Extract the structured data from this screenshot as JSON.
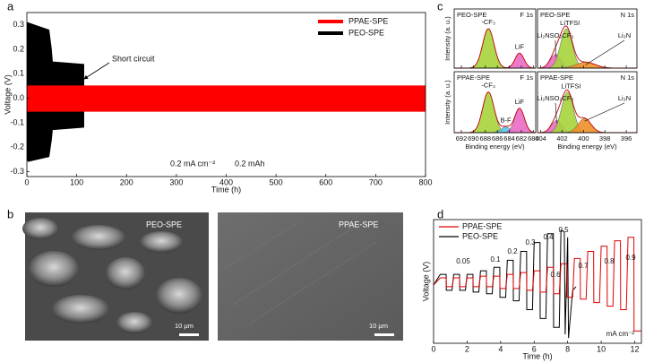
{
  "panel_labels": [
    "a",
    "b",
    "c",
    "d"
  ],
  "images": [
    {
      "label": "PEO-SPE",
      "scale_bar": "10 μm"
    },
    {
      "label": "PPAE-SPE",
      "scale_bar": "10 μm"
    }
  ],
  "chart_data": [
    {
      "type": "band",
      "xlabel": "Time (h)",
      "ylabel": "Voltage (V)",
      "xlim": [
        0,
        800
      ],
      "xticks": [
        0,
        100,
        200,
        300,
        400,
        500,
        600,
        700,
        800
      ],
      "ylim": [
        -0.32,
        0.35
      ],
      "yticks": [
        -0.3,
        -0.2,
        -0.1,
        {
          "value": 0,
          "label": "0.0"
        },
        0.1,
        0.2,
        0.3
      ],
      "legend": "upper right",
      "annotations": [
        "Short circuit",
        "0.2 mA cm⁻²",
        "0.2 mAh"
      ],
      "series": [
        {
          "name": "PPAE-SPE",
          "color": "#ff0000",
          "x": [
            0,
            800
          ],
          "values": [
            0.052,
            0.052
          ],
          "lower": [
            -0.055,
            -0.055
          ]
        },
        {
          "name": "PEO-SPE",
          "color": "#000000",
          "x": [
            0,
            2,
            45,
            50,
            52,
            115
          ],
          "values": [
            0.31,
            0.31,
            0.28,
            0.2,
            0.15,
            0.14
          ],
          "lower": [
            -0.25,
            -0.26,
            -0.24,
            -0.17,
            -0.13,
            -0.12
          ]
        }
      ]
    },
    {
      "type": "xps",
      "title": "PEO-SPE",
      "subtitle": "F 1s",
      "ylabel": "Intensity (a. u.)",
      "xlim": [
        693.2,
        679.6
      ],
      "xticks": [
        692,
        690,
        688,
        686,
        684,
        682,
        680
      ],
      "ylim": [
        0,
        1.5
      ],
      "peaks": [
        {
          "name": "-CF₃",
          "center": 687.5,
          "height": 1.0,
          "width": 0.95,
          "color": "#a6d43c"
        },
        {
          "name": "LiF",
          "center": 682.3,
          "height": 0.38,
          "width": 0.75,
          "color": "#ea6cc4"
        }
      ]
    },
    {
      "type": "xps",
      "title": "PEO-SPE",
      "subtitle": "N 1s",
      "xlim": [
        404.3,
        395
      ],
      "xticks": [
        404,
        402,
        400,
        398,
        396
      ],
      "ylim": [
        0,
        1.5
      ],
      "peaks": [
        {
          "name": "Li₂NSO₂CF₃",
          "center": 402.6,
          "height": 0.35,
          "width": 0.5,
          "color": "#ea6cc4"
        },
        {
          "name": "LiTFSI",
          "center": 401.6,
          "height": 1.0,
          "width": 0.55,
          "color": "#a6d43c"
        },
        {
          "name": "Li₃N",
          "center": 399.8,
          "height": 0.15,
          "width": 0.9,
          "color": "#f0902a"
        }
      ]
    },
    {
      "type": "xps",
      "title": "PPAE-SPE",
      "subtitle": "F 1s",
      "ylabel": "Intensity (a. u.)",
      "xlabel": "Binding energy (eV)",
      "xlim": [
        693.2,
        679.6
      ],
      "xticks": [
        692,
        690,
        688,
        686,
        684,
        682,
        680
      ],
      "ylim": [
        0,
        1.5
      ],
      "peaks": [
        {
          "name": "-CF₃",
          "center": 687.5,
          "height": 1.0,
          "width": 0.95,
          "color": "#a6d43c"
        },
        {
          "name": "B-F",
          "center": 684.6,
          "height": 0.14,
          "width": 0.8,
          "color": "#5cc3e8"
        },
        {
          "name": "LiF",
          "center": 682.3,
          "height": 0.6,
          "width": 0.8,
          "color": "#ea6cc4"
        }
      ]
    },
    {
      "type": "xps",
      "title": "PPAE-SPE",
      "subtitle": "N 1s",
      "xlabel": "Binding energy (eV)",
      "xlim": [
        404.3,
        395
      ],
      "xticks": [
        404,
        402,
        400,
        398,
        396
      ],
      "ylim": [
        0,
        1.5
      ],
      "peaks": [
        {
          "name": "Li₂NSO₂CF₃",
          "center": 402.5,
          "height": 0.3,
          "width": 0.5,
          "color": "#ea6cc4"
        },
        {
          "name": "LiTFSI",
          "center": 401.5,
          "height": 1.0,
          "width": 0.55,
          "color": "#a6d43c"
        },
        {
          "name": "Li₃N",
          "center": 399.9,
          "height": 0.35,
          "width": 0.6,
          "color": "#f0902a"
        }
      ]
    },
    {
      "type": "line",
      "xlabel": "Time (h)",
      "ylabel": "Voltage (V)",
      "xlim": [
        0,
        12.4
      ],
      "xticks": [
        0,
        2,
        4,
        6,
        8,
        10,
        12
      ],
      "ylim": [
        -0.35,
        0.35
      ],
      "legend": "upper left",
      "unit_label": "mA cm⁻²",
      "rate_labels": [
        0.05,
        0.1,
        0.2,
        0.3,
        0.4,
        0.5,
        0.6,
        0.7,
        0.8,
        0.9
      ],
      "series": [
        {
          "name": "PPAE-SPE",
          "color": "#e00000",
          "x": [
            0,
            0.4,
            0.75,
            0.76,
            1.1,
            1.2,
            1.55,
            1.56,
            1.9,
            2.0,
            2.35,
            2.36,
            2.7,
            2.8,
            3.15,
            3.16,
            3.5,
            3.6,
            3.95,
            3.96,
            4.3,
            4.4,
            4.75,
            4.76,
            5.1,
            5.2,
            5.55,
            5.56,
            5.9,
            6.0,
            6.35,
            6.36,
            6.7,
            6.8,
            7.15,
            7.16,
            7.5,
            7.6,
            7.95,
            7.96,
            8.3,
            8.4,
            8.75,
            8.76,
            9.1,
            9.2,
            9.55,
            9.56,
            9.9,
            10.0,
            10.35,
            10.36,
            10.7,
            10.8,
            11.15,
            11.16,
            11.5,
            11.6,
            11.95,
            11.96,
            12.4
          ],
          "values": [
            -0.02,
            0.02,
            0.02,
            -0.03,
            -0.03,
            0.02,
            0.02,
            -0.03,
            -0.03,
            0.02,
            0.02,
            -0.03,
            -0.03,
            0.03,
            0.03,
            -0.03,
            -0.03,
            0.03,
            0.03,
            -0.04,
            -0.04,
            0.04,
            0.04,
            -0.04,
            -0.04,
            0.05,
            0.05,
            -0.05,
            -0.05,
            0.06,
            0.06,
            -0.06,
            -0.06,
            0.08,
            0.08,
            -0.07,
            -0.07,
            0.1,
            0.1,
            -0.09,
            -0.09,
            0.13,
            0.13,
            -0.1,
            -0.1,
            0.17,
            0.17,
            -0.12,
            -0.12,
            0.2,
            0.2,
            -0.14,
            -0.14,
            0.23,
            0.23,
            -0.16,
            -0.16,
            0.25,
            0.25,
            -0.28,
            -0.28
          ]
        },
        {
          "name": "PEO-SPE",
          "color": "#000000",
          "x": [
            0,
            0.4,
            0.75,
            0.76,
            1.1,
            1.2,
            1.55,
            1.56,
            1.9,
            2.0,
            2.35,
            2.36,
            2.7,
            2.8,
            3.15,
            3.16,
            3.5,
            3.6,
            3.95,
            3.96,
            4.3,
            4.4,
            4.75,
            4.76,
            5.1,
            5.2,
            5.55,
            5.56,
            5.9,
            6.0,
            6.35,
            6.36,
            6.7,
            6.8,
            7.15,
            7.16,
            7.5,
            7.6,
            7.8,
            7.85,
            8.0,
            8.05,
            8.3,
            8.5
          ],
          "values": [
            -0.02,
            0.04,
            0.04,
            -0.05,
            -0.05,
            0.04,
            0.04,
            -0.05,
            -0.05,
            0.04,
            0.04,
            -0.06,
            -0.06,
            0.06,
            0.06,
            -0.07,
            -0.07,
            0.08,
            0.08,
            -0.09,
            -0.09,
            0.12,
            0.12,
            -0.11,
            -0.11,
            0.17,
            0.17,
            -0.16,
            -0.16,
            0.22,
            0.22,
            -0.21,
            -0.21,
            0.27,
            0.27,
            -0.26,
            -0.26,
            0.29,
            0.28,
            -0.3,
            0.25,
            -0.32,
            -0.05,
            -0.03
          ]
        }
      ]
    }
  ]
}
